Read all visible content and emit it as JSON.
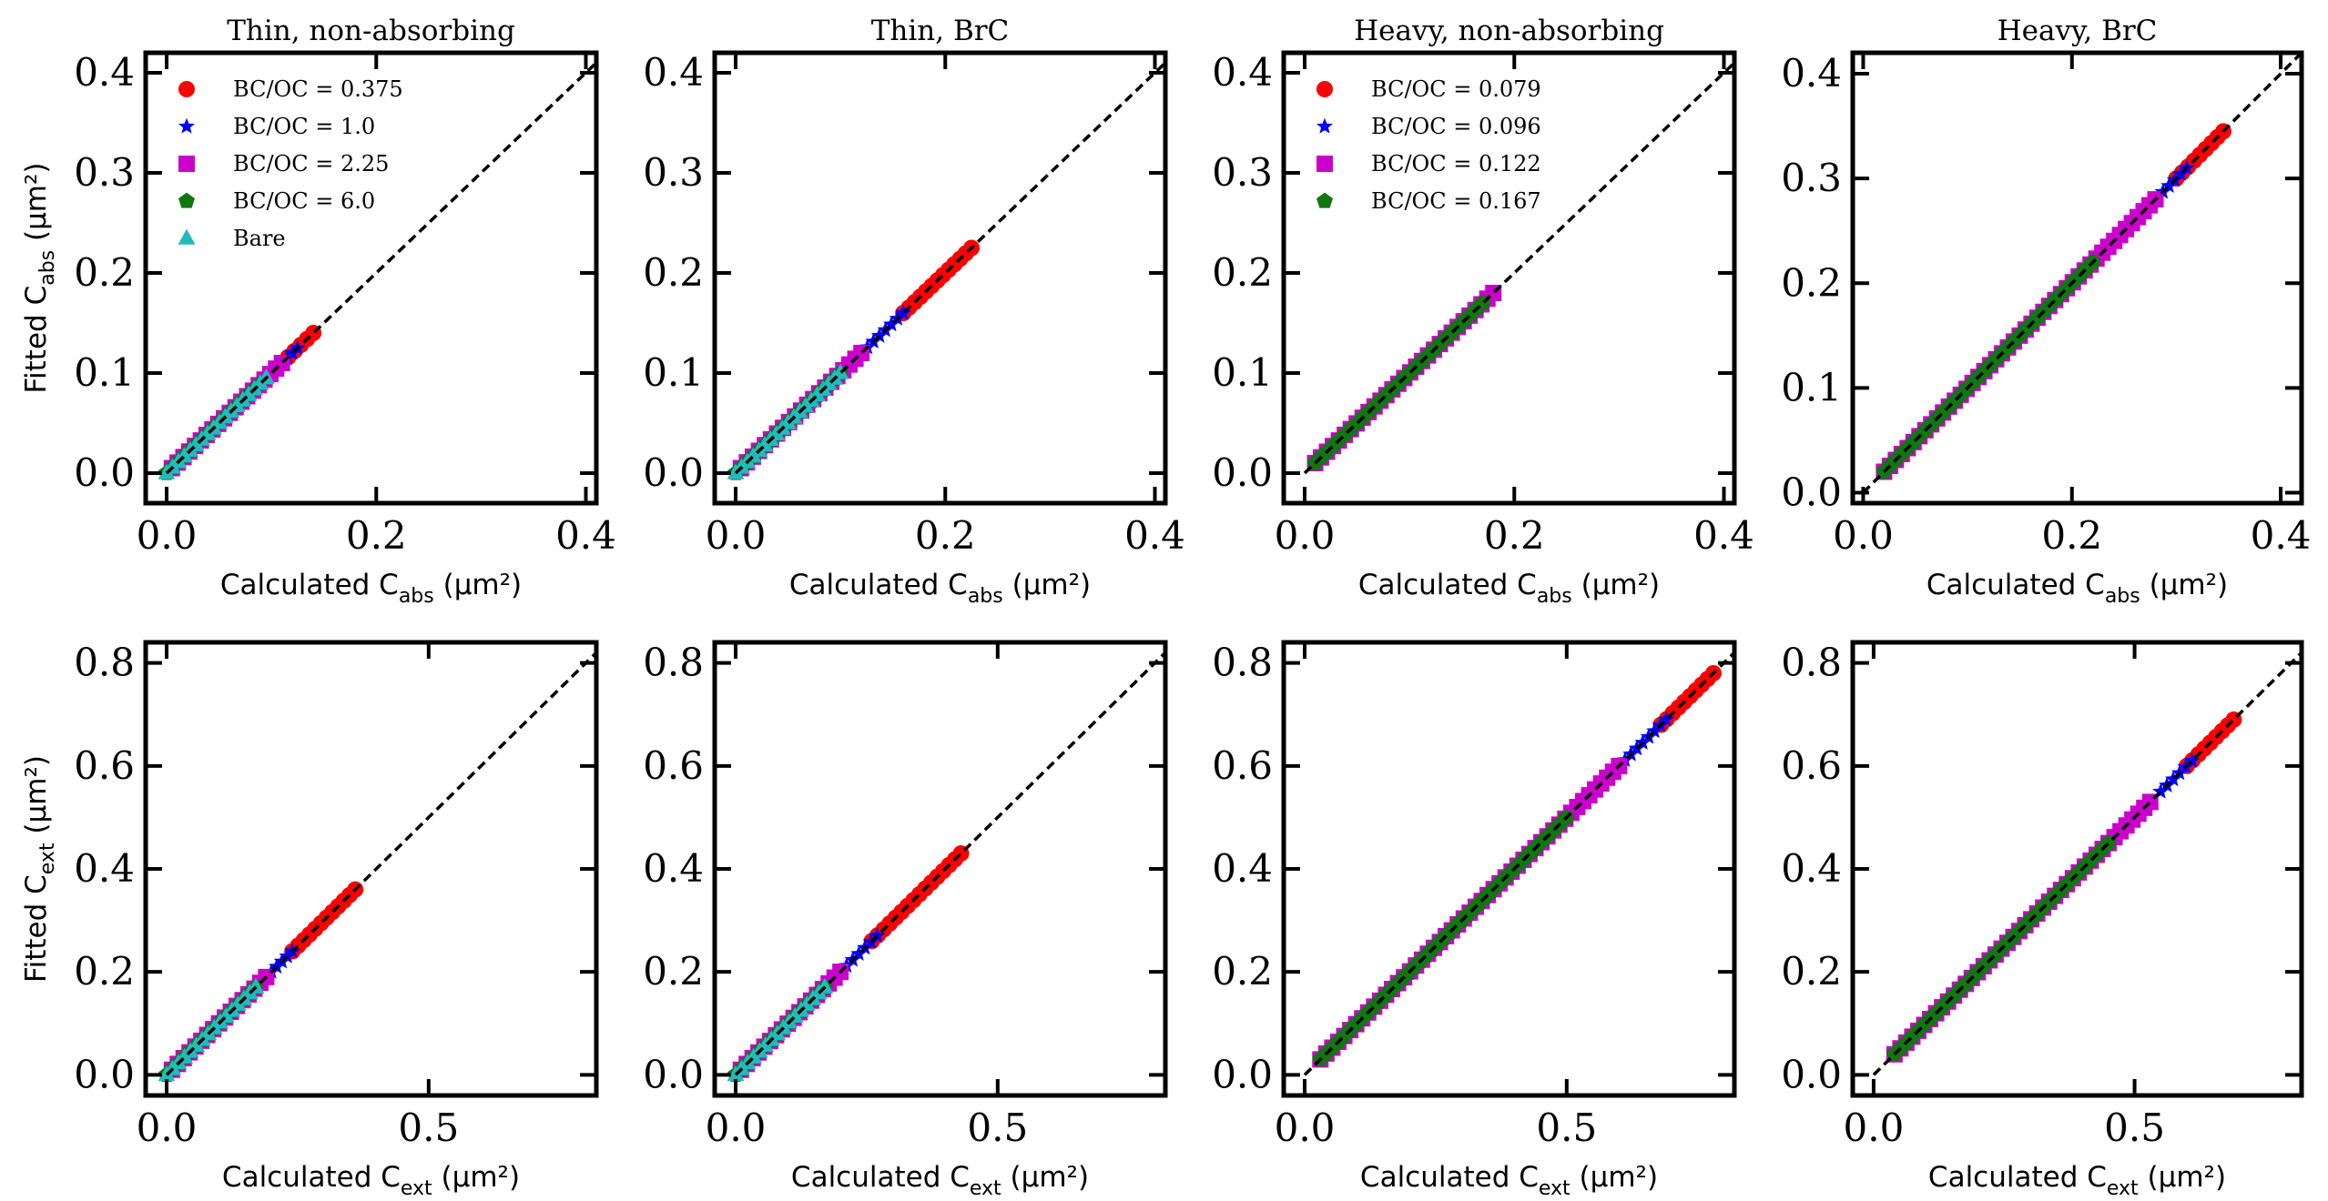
{
  "figure": {
    "caption_rows": [
      "abs",
      "ext"
    ],
    "colors": {
      "BC/OC high": "#ff0000",
      "star": "#0000ff",
      "square": "#cc00cc",
      "pentagon": "#117711",
      "bare": "#22bbbb",
      "line": "#000000"
    }
  },
  "chart_data": [
    {
      "type": "scatter",
      "title": "Thin, non-absorbing",
      "xlabel": "Calculated C",
      "xsub": "abs",
      "xunit": " (µm²)",
      "ylabel": "Fitted C",
      "ysub": "abs",
      "yunit": " (µm²)",
      "xlim": [
        -0.02,
        0.41
      ],
      "ylim": [
        -0.03,
        0.42
      ],
      "xticks": [
        0.0,
        0.2,
        0.4
      ],
      "xtick_labels": [
        "0.0",
        "0.2",
        "0.4"
      ],
      "yticks": [
        0.0,
        0.1,
        0.2,
        0.3,
        0.4
      ],
      "ytick_labels": [
        "0.0",
        "0.1",
        "0.2",
        "0.3",
        "0.4"
      ],
      "legend": [
        "BC/OC = 0.375",
        "BC/OC = 1.0",
        "BC/OC = 2.25",
        "BC/OC = 6.0",
        "Bare"
      ],
      "series": [
        {
          "name": "BC/OC = 0.375",
          "marker": "circle",
          "color": "#ff0000",
          "x": [
            0.11,
            0.14
          ]
        },
        {
          "name": "BC/OC = 1.0",
          "marker": "star",
          "color": "#0000ff",
          "x": [
            0.105,
            0.125
          ]
        },
        {
          "name": "BC/OC = 2.25",
          "marker": "square",
          "color": "#cc00cc",
          "x": [
            0.005,
            0.11
          ]
        },
        {
          "name": "BC/OC = 6.0",
          "marker": "pentagon",
          "color": "#117711",
          "x": [
            0.0,
            0.09
          ]
        },
        {
          "name": "Bare",
          "marker": "triangle",
          "color": "#22bbbb",
          "x": [
            0.0,
            0.095
          ]
        }
      ]
    },
    {
      "type": "scatter",
      "title": "Thin, BrC",
      "xlabel": "Calculated C",
      "xsub": "abs",
      "xunit": " (µm²)",
      "ylabel": "",
      "ysub": "",
      "yunit": "",
      "xlim": [
        -0.02,
        0.41
      ],
      "ylim": [
        -0.03,
        0.42
      ],
      "xticks": [
        0.0,
        0.2,
        0.4
      ],
      "xtick_labels": [
        "0.0",
        "0.2",
        "0.4"
      ],
      "yticks": [
        0.0,
        0.1,
        0.2,
        0.3,
        0.4
      ],
      "ytick_labels": [
        "0.0",
        "0.1",
        "0.2",
        "0.3",
        "0.4"
      ],
      "legend": [],
      "series": [
        {
          "name": "BC/OC = 0.375",
          "marker": "circle",
          "color": "#ff0000",
          "x": [
            0.16,
            0.225
          ]
        },
        {
          "name": "BC/OC = 1.0",
          "marker": "star",
          "color": "#0000ff",
          "x": [
            0.12,
            0.16
          ]
        },
        {
          "name": "BC/OC = 2.25",
          "marker": "square",
          "color": "#cc00cc",
          "x": [
            0.005,
            0.12
          ]
        },
        {
          "name": "BC/OC = 6.0",
          "marker": "pentagon",
          "color": "#117711",
          "x": [
            0.0,
            0.1
          ]
        },
        {
          "name": "Bare",
          "marker": "triangle",
          "color": "#22bbbb",
          "x": [
            0.0,
            0.1
          ]
        }
      ]
    },
    {
      "type": "scatter",
      "title": "Heavy, non-absorbing",
      "xlabel": "Calculated C",
      "xsub": "abs",
      "xunit": " (µm²)",
      "ylabel": "",
      "ysub": "",
      "yunit": "",
      "xlim": [
        -0.02,
        0.41
      ],
      "ylim": [
        -0.03,
        0.42
      ],
      "xticks": [
        0.0,
        0.2,
        0.4
      ],
      "xtick_labels": [
        "0.0",
        "0.2",
        "0.4"
      ],
      "yticks": [
        0.0,
        0.1,
        0.2,
        0.3,
        0.4
      ],
      "ytick_labels": [
        "0.0",
        "0.1",
        "0.2",
        "0.3",
        "0.4"
      ],
      "legend": [
        "BC/OC = 0.079",
        "BC/OC = 0.096",
        "BC/OC = 0.122",
        "BC/OC = 0.167"
      ],
      "series": [
        {
          "name": "BC/OC = 0.079",
          "marker": "circle",
          "color": "#ff0000",
          "x": [
            0.06,
            0.17
          ]
        },
        {
          "name": "BC/OC = 0.096",
          "marker": "star",
          "color": "#0000ff",
          "x": [
            0.05,
            0.17
          ]
        },
        {
          "name": "BC/OC = 0.122",
          "marker": "square",
          "color": "#cc00cc",
          "x": [
            0.01,
            0.18
          ]
        },
        {
          "name": "BC/OC = 0.167",
          "marker": "pentagon",
          "color": "#117711",
          "x": [
            0.01,
            0.17
          ]
        }
      ]
    },
    {
      "type": "scatter",
      "title": "Heavy, BrC",
      "xlabel": "Calculated C",
      "xsub": "abs",
      "xunit": " (µm²)",
      "ylabel": "",
      "ysub": "",
      "yunit": "",
      "xlim": [
        -0.01,
        0.42
      ],
      "ylim": [
        -0.01,
        0.42
      ],
      "xticks": [
        0.0,
        0.2,
        0.4
      ],
      "xtick_labels": [
        "0.0",
        "0.2",
        "0.4"
      ],
      "yticks": [
        0.0,
        0.1,
        0.2,
        0.3,
        0.4
      ],
      "ytick_labels": [
        "0.0",
        "0.1",
        "0.2",
        "0.3",
        "0.4"
      ],
      "legend": [],
      "series": [
        {
          "name": "BC/OC = 0.079",
          "marker": "circle",
          "color": "#ff0000",
          "x": [
            0.3,
            0.345
          ]
        },
        {
          "name": "BC/OC = 0.096",
          "marker": "star",
          "color": "#0000ff",
          "x": [
            0.27,
            0.31
          ]
        },
        {
          "name": "BC/OC = 0.122",
          "marker": "square",
          "color": "#cc00cc",
          "x": [
            0.02,
            0.28
          ]
        },
        {
          "name": "BC/OC = 0.167",
          "marker": "pentagon",
          "color": "#117711",
          "x": [
            0.02,
            0.22
          ]
        }
      ]
    },
    {
      "type": "scatter",
      "title": "",
      "xlabel": "Calculated C",
      "xsub": "ext",
      "xunit": " (µm²)",
      "ylabel": "Fitted C",
      "ysub": "ext",
      "yunit": " (µm²)",
      "xlim": [
        -0.04,
        0.82
      ],
      "ylim": [
        -0.04,
        0.84
      ],
      "xticks": [
        0.0,
        0.5
      ],
      "xtick_labels": [
        "0.0",
        "0.5"
      ],
      "yticks": [
        0.0,
        0.2,
        0.4,
        0.6,
        0.8
      ],
      "ytick_labels": [
        "0.0",
        "0.2",
        "0.4",
        "0.6",
        "0.8"
      ],
      "legend": [],
      "series": [
        {
          "name": "BC/OC = 0.375",
          "marker": "circle",
          "color": "#ff0000",
          "x": [
            0.24,
            0.36
          ]
        },
        {
          "name": "BC/OC = 1.0",
          "marker": "star",
          "color": "#0000ff",
          "x": [
            0.2,
            0.24
          ]
        },
        {
          "name": "BC/OC = 2.25",
          "marker": "square",
          "color": "#cc00cc",
          "x": [
            0.01,
            0.19
          ]
        },
        {
          "name": "BC/OC = 6.0",
          "marker": "pentagon",
          "color": "#117711",
          "x": [
            0.0,
            0.17
          ]
        },
        {
          "name": "Bare",
          "marker": "triangle",
          "color": "#22bbbb",
          "x": [
            0.0,
            0.17
          ]
        }
      ]
    },
    {
      "type": "scatter",
      "title": "",
      "xlabel": "Calculated C",
      "xsub": "ext",
      "xunit": " (µm²)",
      "ylabel": "",
      "ysub": "",
      "yunit": "",
      "xlim": [
        -0.04,
        0.82
      ],
      "ylim": [
        -0.04,
        0.84
      ],
      "xticks": [
        0.0,
        0.5
      ],
      "xtick_labels": [
        "0.0",
        "0.5"
      ],
      "yticks": [
        0.0,
        0.2,
        0.4,
        0.6,
        0.8
      ],
      "ytick_labels": [
        "0.0",
        "0.2",
        "0.4",
        "0.6",
        "0.8"
      ],
      "legend": [],
      "series": [
        {
          "name": "BC/OC = 0.375",
          "marker": "circle",
          "color": "#ff0000",
          "x": [
            0.26,
            0.43
          ]
        },
        {
          "name": "BC/OC = 1.0",
          "marker": "star",
          "color": "#0000ff",
          "x": [
            0.2,
            0.27
          ]
        },
        {
          "name": "BC/OC = 2.25",
          "marker": "square",
          "color": "#cc00cc",
          "x": [
            0.01,
            0.2
          ]
        },
        {
          "name": "BC/OC = 6.0",
          "marker": "pentagon",
          "color": "#117711",
          "x": [
            0.0,
            0.17
          ]
        },
        {
          "name": "Bare",
          "marker": "triangle",
          "color": "#22bbbb",
          "x": [
            0.0,
            0.17
          ]
        }
      ]
    },
    {
      "type": "scatter",
      "title": "",
      "xlabel": "Calculated C",
      "xsub": "ext",
      "xunit": " (µm²)",
      "ylabel": "",
      "ysub": "",
      "yunit": "",
      "xlim": [
        -0.04,
        0.82
      ],
      "ylim": [
        -0.04,
        0.84
      ],
      "xticks": [
        0.0,
        0.5
      ],
      "xtick_labels": [
        "0.0",
        "0.5"
      ],
      "yticks": [
        0.0,
        0.2,
        0.4,
        0.6,
        0.8
      ],
      "ytick_labels": [
        "0.0",
        "0.2",
        "0.4",
        "0.6",
        "0.8"
      ],
      "legend": [],
      "series": [
        {
          "name": "BC/OC = 0.079",
          "marker": "circle",
          "color": "#ff0000",
          "x": [
            0.68,
            0.78
          ]
        },
        {
          "name": "BC/OC = 0.096",
          "marker": "star",
          "color": "#0000ff",
          "x": [
            0.6,
            0.69
          ]
        },
        {
          "name": "BC/OC = 0.122",
          "marker": "square",
          "color": "#cc00cc",
          "x": [
            0.03,
            0.6
          ]
        },
        {
          "name": "BC/OC = 0.167",
          "marker": "pentagon",
          "color": "#117711",
          "x": [
            0.03,
            0.5
          ]
        }
      ]
    },
    {
      "type": "scatter",
      "title": "",
      "xlabel": "Calculated C",
      "xsub": "ext",
      "xunit": " (µm²)",
      "ylabel": "",
      "ysub": "",
      "yunit": "",
      "xlim": [
        -0.04,
        0.82
      ],
      "ylim": [
        -0.04,
        0.84
      ],
      "xticks": [
        0.0,
        0.5
      ],
      "xtick_labels": [
        "0.0",
        "0.5"
      ],
      "yticks": [
        0.0,
        0.2,
        0.4,
        0.6,
        0.8
      ],
      "ytick_labels": [
        "0.0",
        "0.2",
        "0.4",
        "0.6",
        "0.8"
      ],
      "legend": [],
      "series": [
        {
          "name": "BC/OC = 0.079",
          "marker": "circle",
          "color": "#ff0000",
          "x": [
            0.6,
            0.69
          ]
        },
        {
          "name": "BC/OC = 0.096",
          "marker": "star",
          "color": "#0000ff",
          "x": [
            0.55,
            0.61
          ]
        },
        {
          "name": "BC/OC = 0.122",
          "marker": "square",
          "color": "#cc00cc",
          "x": [
            0.04,
            0.53
          ]
        },
        {
          "name": "BC/OC = 0.167",
          "marker": "pentagon",
          "color": "#117711",
          "x": [
            0.04,
            0.45
          ]
        }
      ]
    }
  ]
}
